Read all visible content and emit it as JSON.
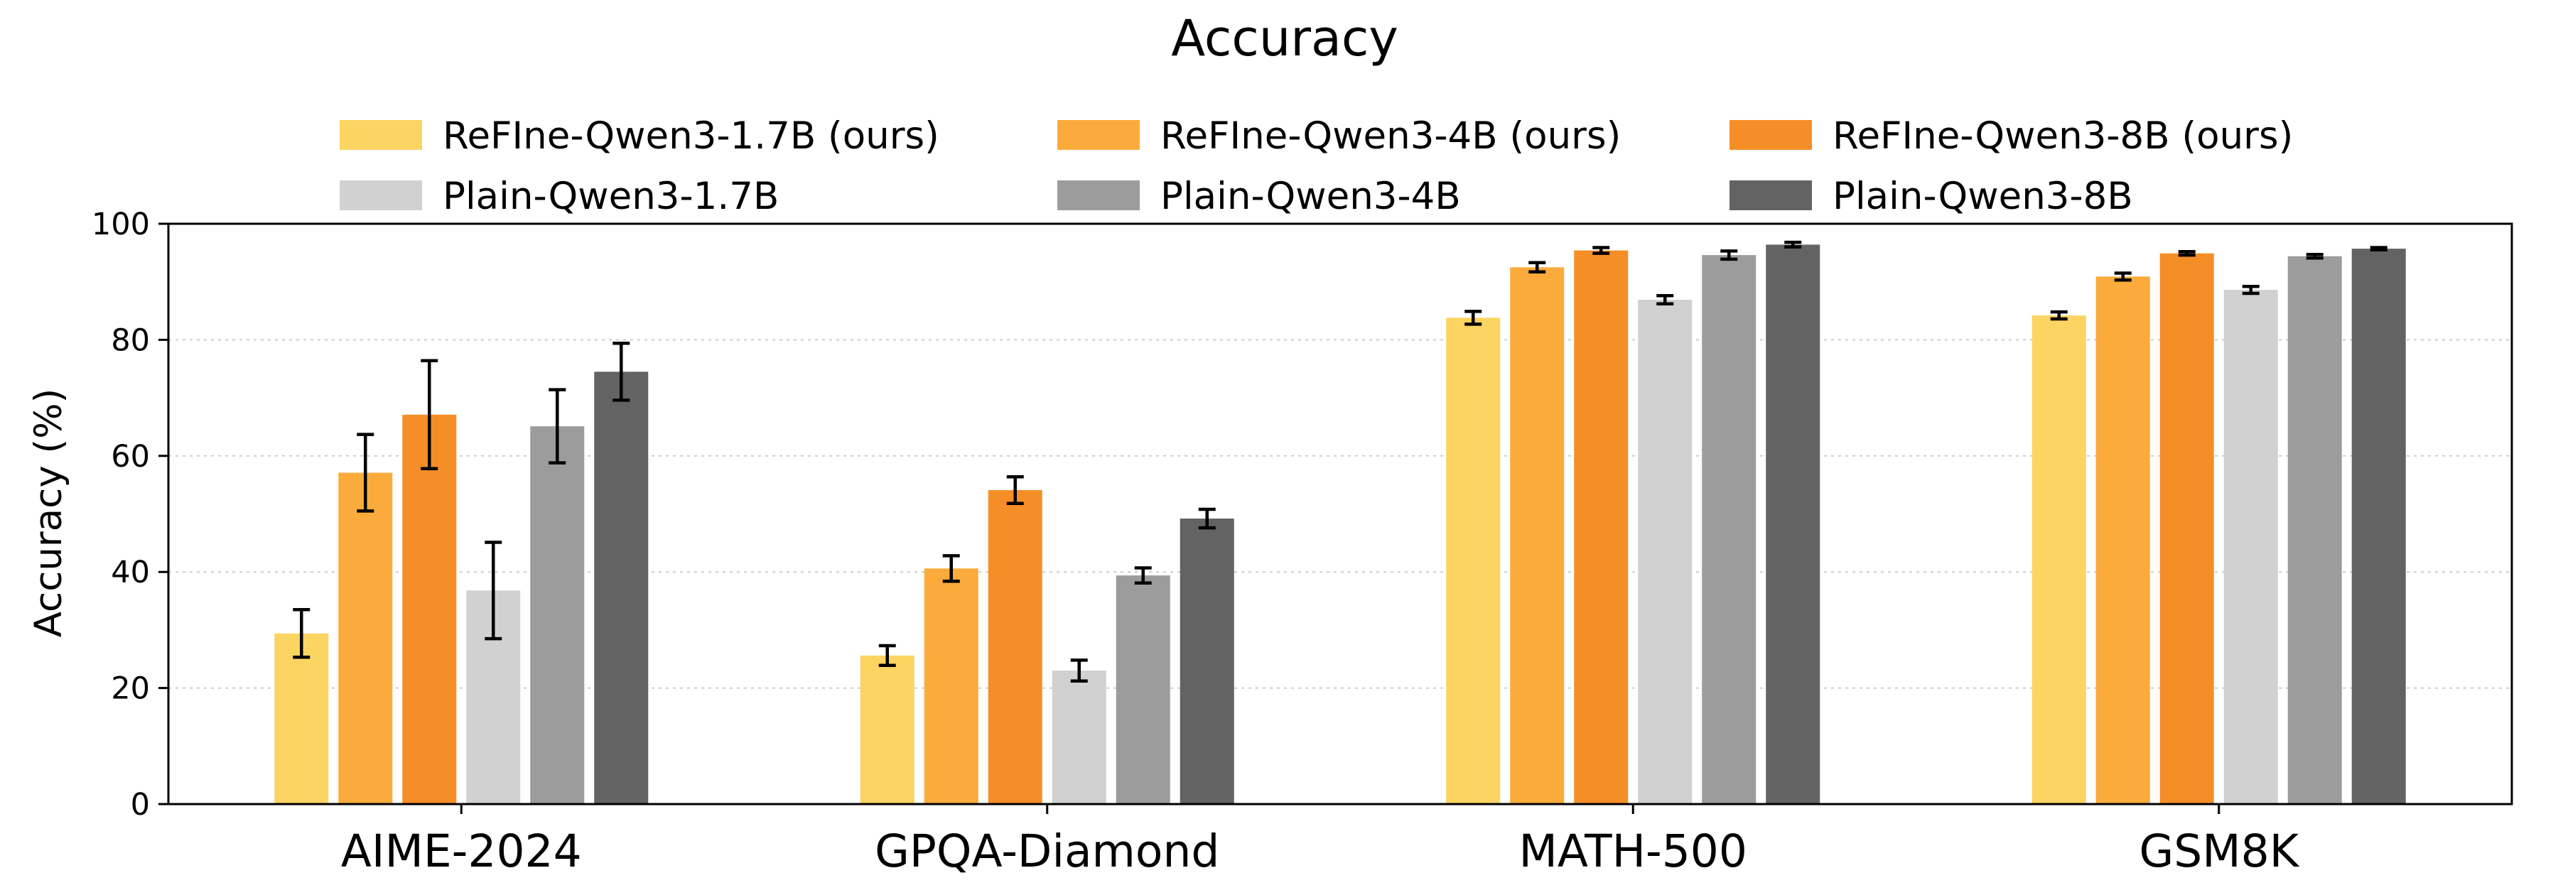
{
  "chart_data": {
    "type": "bar",
    "title": "Accuracy",
    "xlabel": "",
    "ylabel": "Accuracy (%)",
    "ylim": [
      0,
      100
    ],
    "yticks": [
      0,
      20,
      40,
      60,
      80,
      100
    ],
    "grid": "y-dotted",
    "legend_position": "top, 3 columns",
    "categories": [
      "AIME-2024",
      "GPQA-Diamond",
      "MATH-500",
      "GSM8K"
    ],
    "series": [
      {
        "name": "ReFIne-Qwen3-1.7B (ours)",
        "color": "#fcd462",
        "values": [
          29.4,
          25.6,
          83.8,
          84.2
        ],
        "errors": [
          4.1,
          1.7,
          1.1,
          0.6
        ]
      },
      {
        "name": "ReFIne-Qwen3-4B (ours)",
        "color": "#fbab3b",
        "values": [
          57.1,
          40.6,
          92.5,
          90.9
        ],
        "errors": [
          6.6,
          2.2,
          0.8,
          0.6
        ]
      },
      {
        "name": "ReFIne-Qwen3-8B (ours)",
        "color": "#f68e28",
        "values": [
          67.1,
          54.1,
          95.4,
          94.9
        ],
        "errors": [
          9.3,
          2.3,
          0.5,
          0.3
        ]
      },
      {
        "name": "Plain-Qwen3-1.7B",
        "color": "#d1d1d1",
        "values": [
          36.8,
          23.0,
          86.9,
          88.6
        ],
        "errors": [
          8.3,
          1.8,
          0.7,
          0.6
        ]
      },
      {
        "name": "Plain-Qwen3-4B",
        "color": "#9c9c9c",
        "values": [
          65.1,
          39.4,
          94.6,
          94.4
        ],
        "errors": [
          6.3,
          1.3,
          0.7,
          0.3
        ]
      },
      {
        "name": "Plain-Qwen3-8B",
        "color": "#636363",
        "values": [
          74.5,
          49.2,
          96.4,
          95.7
        ],
        "errors": [
          4.9,
          1.6,
          0.4,
          0.2
        ]
      }
    ]
  }
}
